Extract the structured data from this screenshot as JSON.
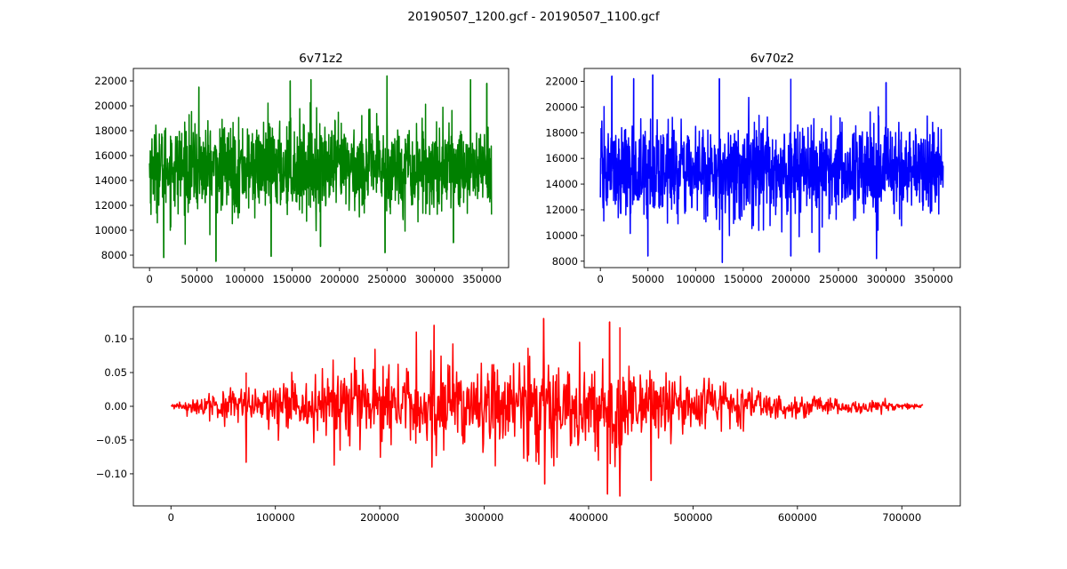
{
  "figure": {
    "suptitle": "20190507_1200.gcf - 20190507_1100.gcf"
  },
  "chart_data": [
    {
      "type": "line",
      "title": "6v71z2",
      "color": "#008000",
      "xlabel": "",
      "ylabel": "",
      "xlim": [
        -17000,
        378000
      ],
      "ylim": [
        7000,
        23000
      ],
      "xticks": [
        0,
        50000,
        100000,
        150000,
        200000,
        250000,
        300000,
        350000
      ],
      "yticks": [
        8000,
        10000,
        12000,
        14000,
        16000,
        18000,
        20000,
        22000
      ],
      "series": [
        {
          "n_points": 360000,
          "x_range": [
            0,
            360000
          ],
          "mean": 15000,
          "typical_range": [
            11500,
            18500
          ],
          "peaks": [
            {
              "x": 52000,
              "y": 21500
            },
            {
              "x": 148000,
              "y": 22000
            },
            {
              "x": 170000,
              "y": 22100
            },
            {
              "x": 250000,
              "y": 22400
            },
            {
              "x": 338000,
              "y": 22100
            },
            {
              "x": 355000,
              "y": 21800
            }
          ],
          "troughs": [
            {
              "x": 15000,
              "y": 7800
            },
            {
              "x": 70000,
              "y": 7500
            },
            {
              "x": 128000,
              "y": 7900
            },
            {
              "x": 180000,
              "y": 8700
            },
            {
              "x": 248000,
              "y": 8200
            },
            {
              "x": 320000,
              "y": 9000
            }
          ]
        }
      ]
    },
    {
      "type": "line",
      "title": "6v70z2",
      "color": "#0000ff",
      "xlabel": "",
      "ylabel": "",
      "xlim": [
        -17000,
        378000
      ],
      "ylim": [
        7500,
        23000
      ],
      "xticks": [
        0,
        50000,
        100000,
        150000,
        200000,
        250000,
        300000,
        350000
      ],
      "yticks": [
        8000,
        10000,
        12000,
        14000,
        16000,
        18000,
        20000,
        22000
      ],
      "series": [
        {
          "n_points": 360000,
          "x_range": [
            0,
            360000
          ],
          "mean": 15000,
          "typical_range": [
            11500,
            18500
          ],
          "peaks": [
            {
              "x": 12000,
              "y": 22400
            },
            {
              "x": 35000,
              "y": 22200
            },
            {
              "x": 55000,
              "y": 22500
            },
            {
              "x": 125000,
              "y": 22200
            },
            {
              "x": 200000,
              "y": 22200
            },
            {
              "x": 300000,
              "y": 21900
            }
          ],
          "troughs": [
            {
              "x": 50000,
              "y": 8400
            },
            {
              "x": 128000,
              "y": 7900
            },
            {
              "x": 200000,
              "y": 8400
            },
            {
              "x": 230000,
              "y": 8700
            },
            {
              "x": 290000,
              "y": 8200
            }
          ]
        }
      ]
    },
    {
      "type": "line",
      "title": "",
      "color": "#ff0000",
      "xlabel": "",
      "ylabel": "",
      "xlim": [
        -36000,
        756000
      ],
      "ylim": [
        -0.1475,
        0.1475
      ],
      "xticks": [
        0,
        100000,
        200000,
        300000,
        400000,
        500000,
        600000,
        700000
      ],
      "yticks": [
        -0.1,
        -0.05,
        0.0,
        0.05,
        0.1
      ],
      "ytick_labels": [
        "−0.10",
        "−0.05",
        "0.00",
        "0.05",
        "0.10"
      ],
      "series": [
        {
          "n_points": 719999,
          "x_range": [
            0,
            720000
          ],
          "center": 0.0,
          "envelope": {
            "x": [
              0,
              60000,
              150000,
              250000,
              360000,
              420000,
              500000,
              600000,
              720000
            ],
            "amplitude": [
              0.003,
              0.03,
              0.06,
              0.08,
              0.09,
              0.08,
              0.05,
              0.02,
              0.003
            ]
          },
          "peaks": [
            {
              "x": 72000,
              "y": 0.05
            },
            {
              "x": 235000,
              "y": 0.11
            },
            {
              "x": 252000,
              "y": 0.12
            },
            {
              "x": 357000,
              "y": 0.13
            },
            {
              "x": 420000,
              "y": 0.125
            },
            {
              "x": 430000,
              "y": 0.117
            }
          ],
          "troughs": [
            {
              "x": 72000,
              "y": -0.083
            },
            {
              "x": 250000,
              "y": -0.09
            },
            {
              "x": 358000,
              "y": -0.115
            },
            {
              "x": 418000,
              "y": -0.13
            },
            {
              "x": 430000,
              "y": -0.133
            },
            {
              "x": 460000,
              "y": -0.11
            }
          ]
        }
      ]
    }
  ]
}
